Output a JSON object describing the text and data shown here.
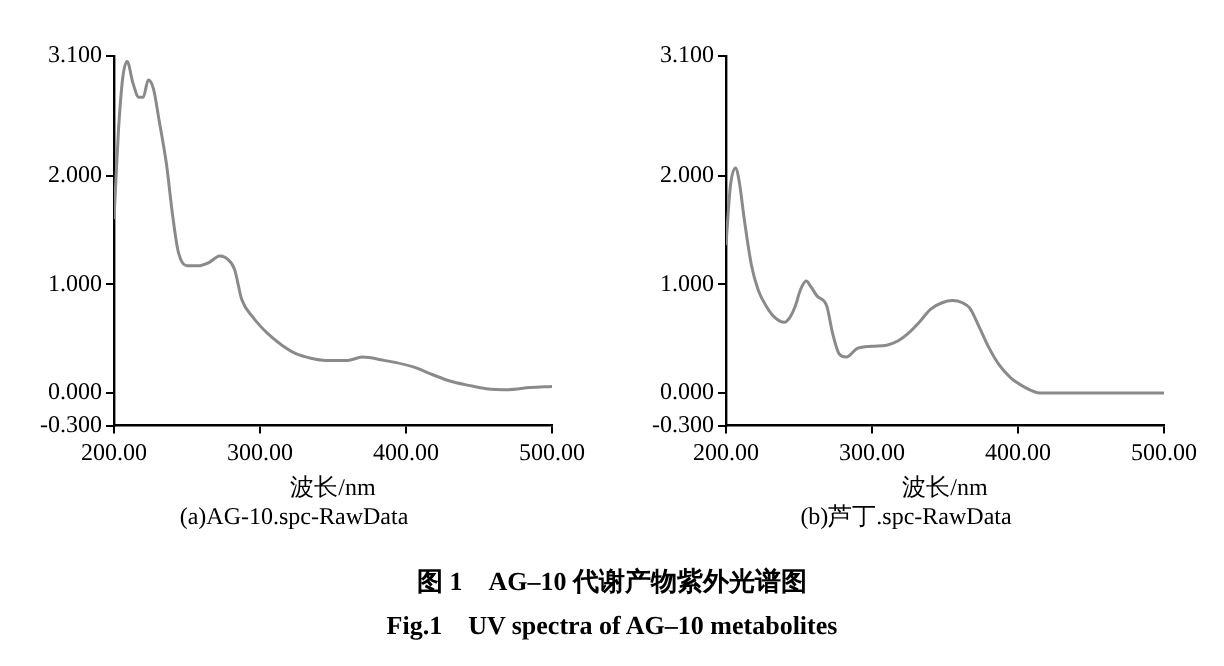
{
  "chart_data": [
    {
      "type": "line",
      "title": "(a)AG-10.spc-RawData",
      "xlabel": "波长/nm",
      "xlim": [
        200,
        500
      ],
      "xticks": [
        {
          "value": 200,
          "label": "200.00"
        },
        {
          "value": 300,
          "label": "300.00"
        },
        {
          "value": 400,
          "label": "400.00"
        },
        {
          "value": 500,
          "label": "500.00"
        }
      ],
      "ylim": [
        -0.3,
        3.1
      ],
      "yticks": [
        {
          "value": -0.3,
          "label": "-0.300"
        },
        {
          "value": 0,
          "label": "0.000"
        },
        {
          "value": 1,
          "label": "1.000"
        },
        {
          "value": 2,
          "label": "2.000"
        },
        {
          "value": 3.1,
          "label": "3.100"
        }
      ],
      "grid": false,
      "legend": false,
      "marker": "none",
      "line_style": "solid",
      "series": [
        {
          "color": "#8a8a8a",
          "x": [
            200,
            203,
            206,
            209,
            213,
            217,
            220,
            223.5,
            227,
            231,
            236,
            240,
            244,
            250,
            257.5,
            265,
            272.5,
            277,
            282.5,
            287.5,
            295,
            305,
            315,
            325,
            335,
            345,
            360,
            370,
            385,
            405,
            418,
            430,
            443,
            455,
            470,
            485,
            500
          ],
          "values": [
            1.6,
            2.4,
            2.9,
            3.05,
            2.85,
            2.72,
            2.72,
            2.88,
            2.8,
            2.5,
            2.1,
            1.65,
            1.3,
            1.17,
            1.17,
            1.2,
            1.26,
            1.24,
            1.14,
            0.86,
            0.7,
            0.55,
            0.44,
            0.36,
            0.32,
            0.3,
            0.3,
            0.33,
            0.3,
            0.24,
            0.17,
            0.11,
            0.07,
            0.04,
            0.03,
            0.05,
            0.06
          ]
        }
      ],
      "annotations": [
        "图 1　AG–10 代谢产物紫外光谱图",
        "Fig.1　UV spectra of AG–10 metabolites"
      ]
    },
    {
      "type": "line",
      "title": "(b)芦丁.spc-RawData",
      "xlabel": "波长/nm",
      "xlim": [
        200,
        500
      ],
      "xticks": [
        {
          "value": 200,
          "label": "200.00"
        },
        {
          "value": 300,
          "label": "300.00"
        },
        {
          "value": 400,
          "label": "400.00"
        },
        {
          "value": 500,
          "label": "500.00"
        }
      ],
      "ylim": [
        -0.3,
        3.1
      ],
      "yticks": [
        {
          "value": -0.3,
          "label": "-0.300"
        },
        {
          "value": 0,
          "label": "0.000"
        },
        {
          "value": 1,
          "label": "1.000"
        },
        {
          "value": 2,
          "label": "2.000"
        },
        {
          "value": 3.1,
          "label": "3.100"
        }
      ],
      "grid": false,
      "legend": false,
      "marker": "none",
      "line_style": "solid",
      "series": [
        {
          "color": "#8a8a8a",
          "x": [
            200,
            203,
            206.5,
            209,
            212.5,
            217.5,
            222,
            227.5,
            233,
            240,
            244,
            247.5,
            251,
            255,
            258,
            262.5,
            269,
            273,
            277.5,
            282.5,
            290,
            300,
            310,
            318,
            325,
            333,
            340,
            348,
            355,
            362,
            367,
            373,
            380,
            387,
            395,
            405,
            415,
            450,
            500
          ],
          "values": [
            1.36,
            1.9,
            2.07,
            1.95,
            1.6,
            1.17,
            0.95,
            0.8,
            0.7,
            0.65,
            0.7,
            0.8,
            0.95,
            1.03,
            0.98,
            0.89,
            0.8,
            0.55,
            0.36,
            0.33,
            0.41,
            0.43,
            0.44,
            0.48,
            0.55,
            0.66,
            0.77,
            0.83,
            0.85,
            0.83,
            0.78,
            0.62,
            0.42,
            0.26,
            0.14,
            0.05,
            0,
            0,
            0
          ]
        }
      ]
    }
  ]
}
